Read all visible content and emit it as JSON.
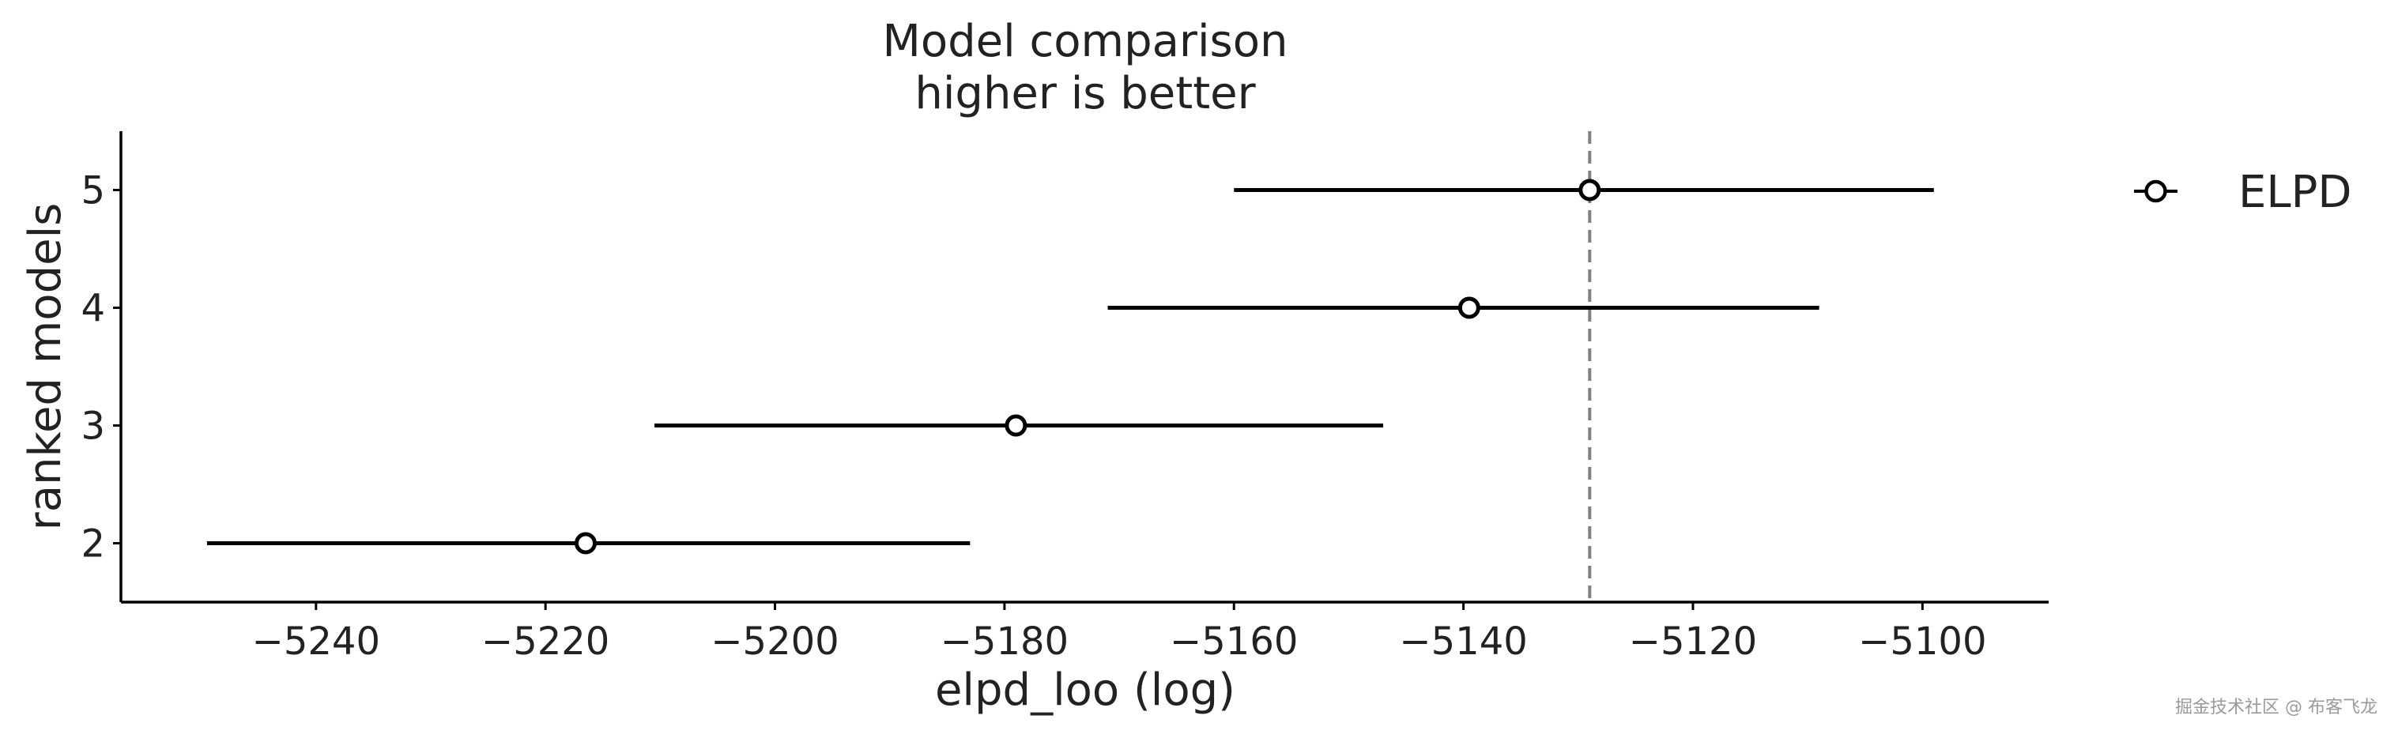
{
  "chart_data": {
    "type": "scatter",
    "title": "Model comparison",
    "subtitle": "higher is better",
    "xlabel": "elpd_loo (log)",
    "ylabel": "ranked models",
    "xlim": [
      -5257,
      -5089
    ],
    "ylim": [
      1.5,
      5.5
    ],
    "x_ticks": [
      -5240,
      -5220,
      -5200,
      -5180,
      -5160,
      -5140,
      -5120,
      -5100
    ],
    "x_tick_labels": [
      "−5240",
      "−5220",
      "−5200",
      "−5180",
      "−5160",
      "−5140",
      "−5120",
      "−5100"
    ],
    "y_ticks": [
      5,
      4,
      3,
      2
    ],
    "y_tick_labels": [
      "5",
      "4",
      "3",
      "2"
    ],
    "grid": false,
    "reference_line": {
      "x": -5129,
      "style": "dashed",
      "color": "#808080"
    },
    "series": [
      {
        "name": "ELPD",
        "points": [
          {
            "model": "5",
            "y": 5,
            "x": -5129,
            "lower": -5160,
            "upper": -5099
          },
          {
            "model": "4",
            "y": 4,
            "x": -5139.5,
            "lower": -5171,
            "upper": -5109
          },
          {
            "model": "3",
            "y": 3,
            "x": -5179,
            "lower": -5210.5,
            "upper": -5147
          },
          {
            "model": "2",
            "y": 2,
            "x": -5216.5,
            "lower": -5249.5,
            "upper": -5183
          }
        ]
      }
    ],
    "legend": {
      "position": "top-right",
      "labels": [
        "ELPD"
      ]
    },
    "colors": {
      "marker_edge": "#000000",
      "marker_fill": "#ffffff",
      "error_bar": "#000000",
      "axis": "#000000",
      "reference": "#808080"
    }
  },
  "watermark": "掘金技术社区 @ 布客飞龙"
}
